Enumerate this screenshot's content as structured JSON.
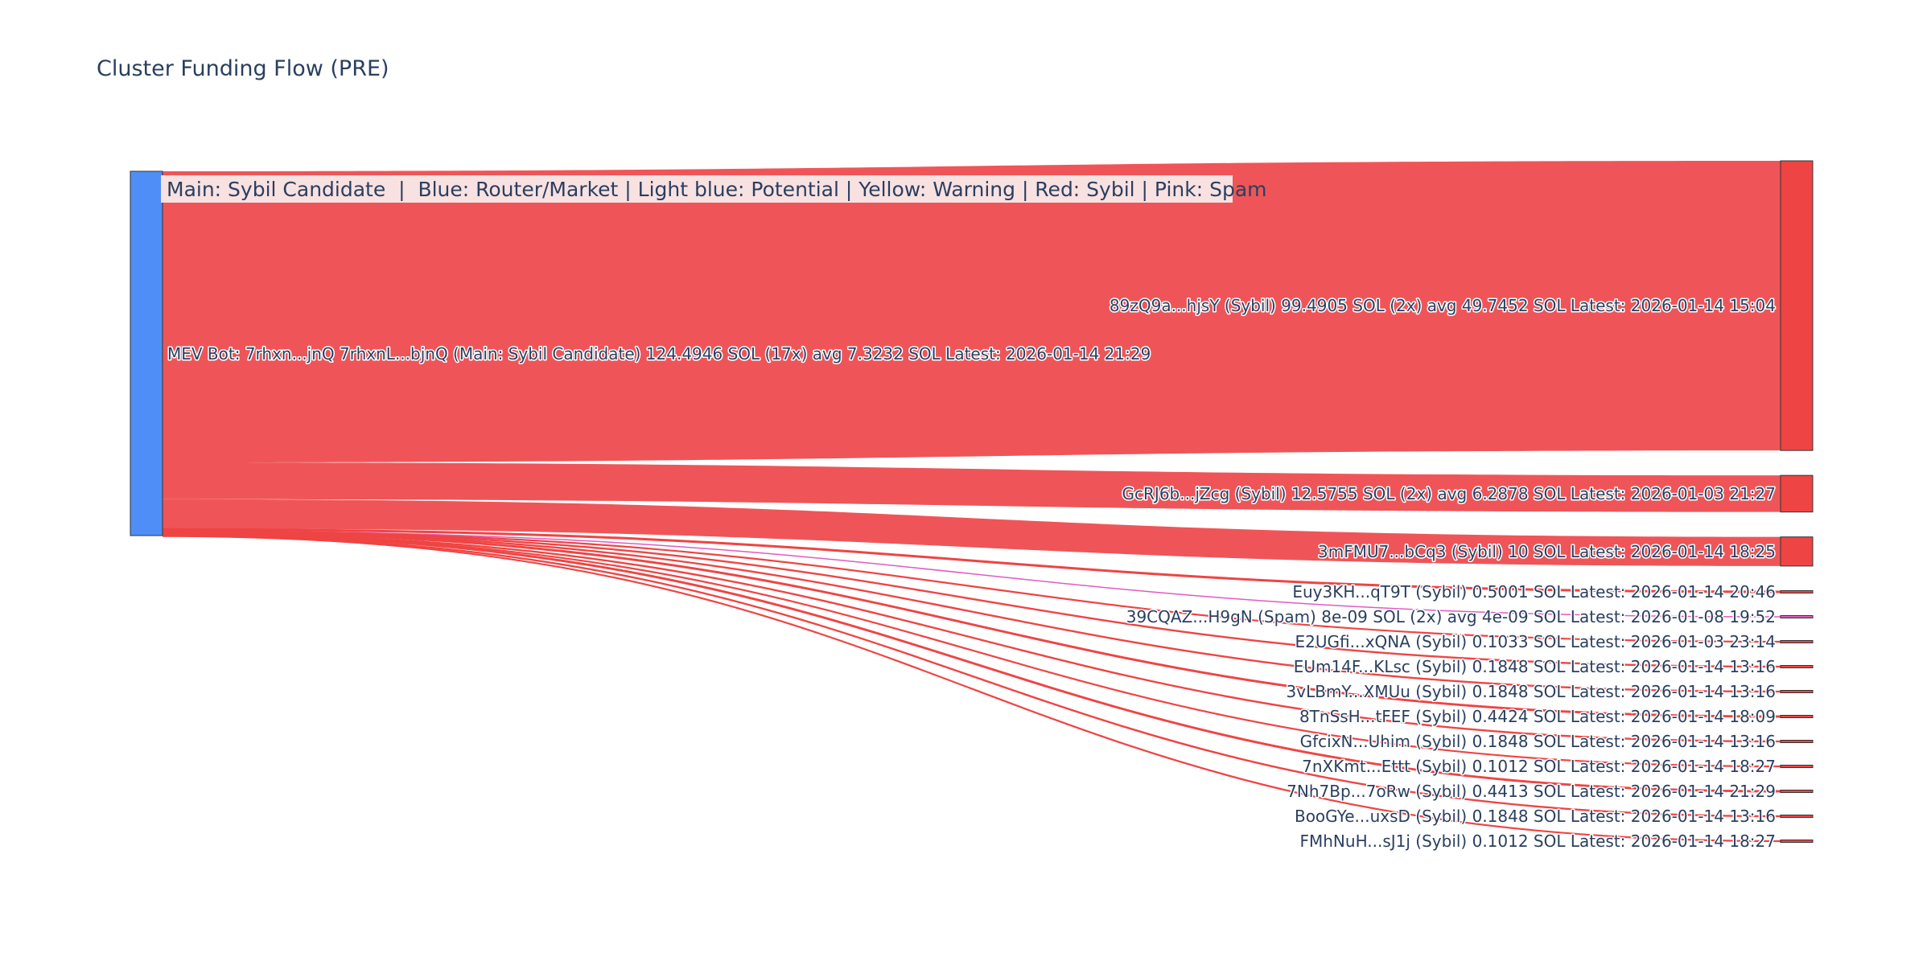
{
  "title": "Cluster Funding Flow (PRE)",
  "legend_note": "Main: Sybil Candidate  |  Blue: Router/Market | Light blue: Potential | Yellow: Warning | Red: Sybil | Pink: Spam",
  "colors": {
    "source_node": "#4f8ef7",
    "sybil": "#ef4444",
    "sybil_link": "#ef5558",
    "spam": "#e05cc0",
    "node_border": "#333333",
    "legend_bg": "#f8e1e1",
    "text": "#2a3f5f"
  },
  "chart_data": {
    "type": "sankey",
    "title": "Cluster Funding Flow (PRE)",
    "source": {
      "label": "MEV Bot: 7rhxn...jnQ 7rhxnL...bjnQ (Main: Sybil Candidate) 124.4946 SOL (17x) avg 7.3232 SOL Latest: 2026-01-14 21:29",
      "category": "Router/Market",
      "total": 124.4946
    },
    "targets": [
      {
        "label": "89zQ9a...hjsY (Sybil) 99.4905 SOL (2x) avg 49.7452 SOL Latest: 2026-01-14 15:04",
        "value": 99.4905,
        "category": "Sybil"
      },
      {
        "label": "GcRJ6b...jZcg (Sybil) 12.5755 SOL (2x) avg 6.2878 SOL Latest: 2026-01-03 21:27",
        "value": 12.5755,
        "category": "Sybil"
      },
      {
        "label": "3mFMU7...bCq3 (Sybil) 10 SOL Latest: 2026-01-14 18:25",
        "value": 10,
        "category": "Sybil"
      },
      {
        "label": "Euy3KH...qT9T (Sybil) 0.5001 SOL Latest: 2026-01-14 20:46",
        "value": 0.5001,
        "category": "Sybil"
      },
      {
        "label": "39CQAZ...H9gN (Spam) 8e-09 SOL (2x) avg 4e-09 SOL Latest: 2026-01-08 19:52",
        "value": 8e-09,
        "category": "Spam"
      },
      {
        "label": "E2UGfi...xQNA (Sybil) 0.1033 SOL Latest: 2026-01-03 23:14",
        "value": 0.1033,
        "category": "Sybil"
      },
      {
        "label": "EUm14F...KLsc (Sybil) 0.1848 SOL Latest: 2026-01-14 13:16",
        "value": 0.1848,
        "category": "Sybil"
      },
      {
        "label": "3vLBmY...XMUu (Sybil) 0.1848 SOL Latest: 2026-01-14 13:16",
        "value": 0.1848,
        "category": "Sybil"
      },
      {
        "label": "8TnSsH...tFEF (Sybil) 0.4424 SOL Latest: 2026-01-14 18:09",
        "value": 0.4424,
        "category": "Sybil"
      },
      {
        "label": "GfcixN...Uhim (Sybil) 0.1848 SOL Latest: 2026-01-14 13:16",
        "value": 0.1848,
        "category": "Sybil"
      },
      {
        "label": "7nXKmt...Ettt (Sybil) 0.1012 SOL Latest: 2026-01-14 18:27",
        "value": 0.1012,
        "category": "Sybil"
      },
      {
        "label": "7Nh7Bp...7oRw (Sybil) 0.4413 SOL Latest: 2026-01-14 21:29",
        "value": 0.4413,
        "category": "Sybil"
      },
      {
        "label": "BooGYe...uxsD (Sybil) 0.1848 SOL Latest: 2026-01-14 13:16",
        "value": 0.1848,
        "category": "Sybil"
      },
      {
        "label": "FMhNuH...sJ1j (Sybil) 0.1012 SOL Latest: 2026-01-14 18:27",
        "value": 0.1012,
        "category": "Sybil"
      }
    ]
  }
}
